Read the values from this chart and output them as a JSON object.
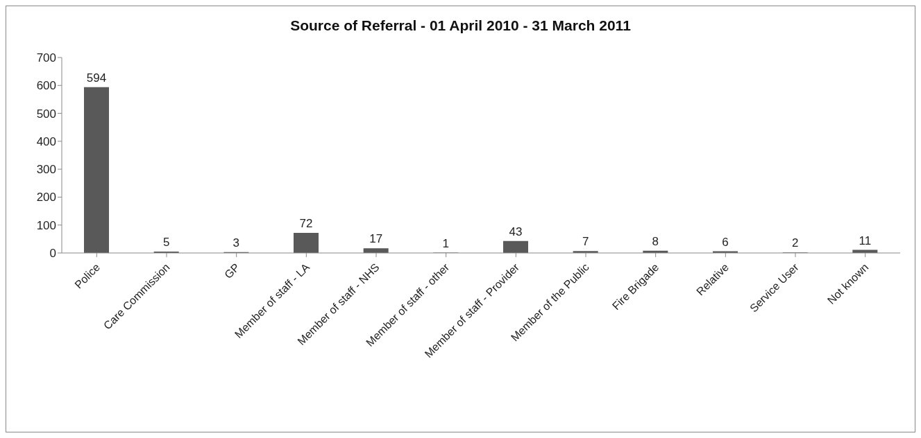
{
  "chart_data": {
    "type": "bar",
    "title": "Source of Referral - 01 April 2010 - 31 March 2011",
    "categories": [
      "Police",
      "Care Commission",
      "GP",
      "Member of staff - LA",
      "Member of staff - NHS",
      "Member of staff - other",
      "Member of staff - Provider",
      "Member of the Public",
      "Fire Brigade",
      "Relative",
      "Service User",
      "Not known"
    ],
    "values": [
      594,
      5,
      3,
      72,
      17,
      1,
      43,
      7,
      8,
      6,
      2,
      11
    ],
    "color": "#595959",
    "ylim": [
      0,
      700
    ],
    "yticks": [
      0,
      100,
      200,
      300,
      400,
      500,
      600,
      700
    ],
    "data_labels": true
  }
}
